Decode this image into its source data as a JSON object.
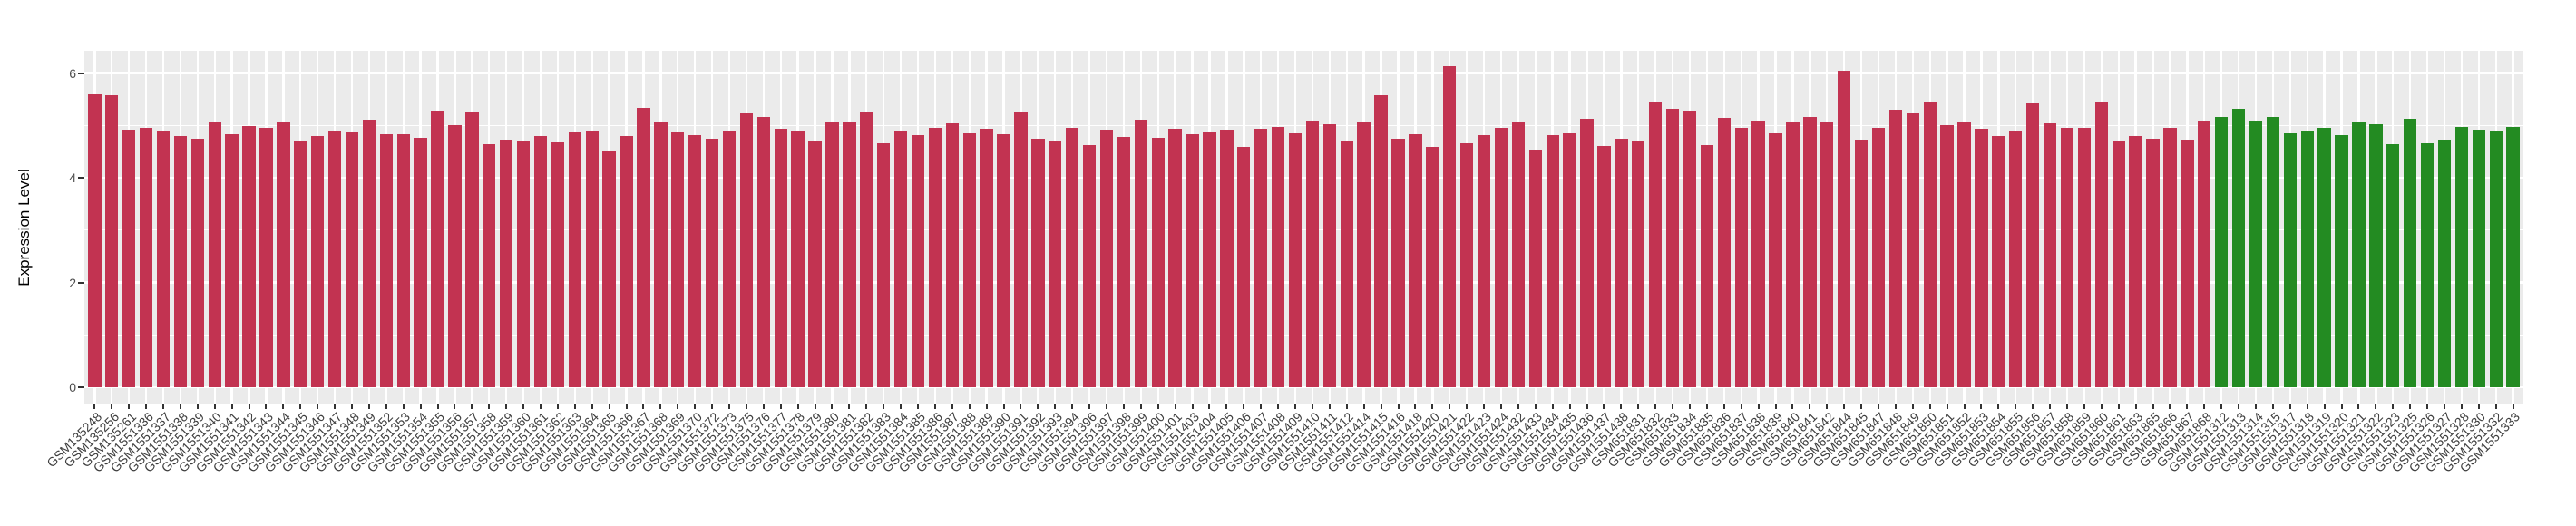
{
  "figure": {
    "background": "#FFFFFF",
    "panel_background": "#EBEBEB",
    "gridline_color": "#FFFFFF"
  },
  "chart_data": {
    "type": "bar",
    "title": "",
    "xlabel": "",
    "ylabel": "Expression Level",
    "yticks": [
      0,
      2,
      4,
      6
    ],
    "ylim": [
      -0.31,
      6.41
    ],
    "grid": "white major (0,2,4,6) + minor (1,3,5) horizontal lines and vertical line at each category, on gray panel",
    "legend_position": "none",
    "x_tick_label_rotation_deg": 45,
    "color_groups": [
      {
        "name": "red-group",
        "color": "#C23351",
        "start": 0,
        "end": 123
      },
      {
        "name": "green-group",
        "color": "#238B22",
        "start": 124,
        "end": 141
      }
    ],
    "categories": [
      "GSM135248",
      "GSM135256",
      "GSM135261",
      "GSM1551336",
      "GSM1551337",
      "GSM1551338",
      "GSM1551339",
      "GSM1551340",
      "GSM1551341",
      "GSM1551342",
      "GSM1551343",
      "GSM1551344",
      "GSM1551345",
      "GSM1551346",
      "GSM1551347",
      "GSM1551348",
      "GSM1551349",
      "GSM1551352",
      "GSM1551353",
      "GSM1551354",
      "GSM1551355",
      "GSM1551356",
      "GSM1551357",
      "GSM1551358",
      "GSM1551359",
      "GSM1551360",
      "GSM1551361",
      "GSM1551362",
      "GSM1551363",
      "GSM1551364",
      "GSM1551365",
      "GSM1551366",
      "GSM1551367",
      "GSM1551368",
      "GSM1551369",
      "GSM1551370",
      "GSM1551372",
      "GSM1551373",
      "GSM1551375",
      "GSM1551376",
      "GSM1551377",
      "GSM1551378",
      "GSM1551379",
      "GSM1551380",
      "GSM1551381",
      "GSM1551382",
      "GSM1551383",
      "GSM1551384",
      "GSM1551385",
      "GSM1551386",
      "GSM1551387",
      "GSM1551388",
      "GSM1551389",
      "GSM1551390",
      "GSM1551391",
      "GSM1551392",
      "GSM1551393",
      "GSM1551394",
      "GSM1551396",
      "GSM1551397",
      "GSM1551398",
      "GSM1551399",
      "GSM1551400",
      "GSM1551401",
      "GSM1551403",
      "GSM1551404",
      "GSM1551405",
      "GSM1551406",
      "GSM1551407",
      "GSM1551408",
      "GSM1551409",
      "GSM1551410",
      "GSM1551411",
      "GSM1551412",
      "GSM1551414",
      "GSM1551415",
      "GSM1551416",
      "GSM1551418",
      "GSM1551420",
      "GSM1551421",
      "GSM1551422",
      "GSM1551423",
      "GSM1551424",
      "GSM1551432",
      "GSM1551433",
      "GSM1551434",
      "GSM1551435",
      "GSM1551436",
      "GSM1551437",
      "GSM1551438",
      "GSM651831",
      "GSM651832",
      "GSM651833",
      "GSM651834",
      "GSM651835",
      "GSM651836",
      "GSM651837",
      "GSM651838",
      "GSM651839",
      "GSM651840",
      "GSM651841",
      "GSM651842",
      "GSM651844",
      "GSM651845",
      "GSM651847",
      "GSM651848",
      "GSM651849",
      "GSM651850",
      "GSM651851",
      "GSM651852",
      "GSM651853",
      "GSM651854",
      "GSM651855",
      "GSM651856",
      "GSM651857",
      "GSM651858",
      "GSM651859",
      "GSM651860",
      "GSM651861",
      "GSM651863",
      "GSM651865",
      "GSM651866",
      "GSM651867",
      "GSM651868",
      "GSM1551312",
      "GSM1551313",
      "GSM1551314",
      "GSM1551315",
      "GSM1551317",
      "GSM1551318",
      "GSM1551319",
      "GSM1551320",
      "GSM1551321",
      "GSM1551322",
      "GSM1551323",
      "GSM1551325",
      "GSM1551326",
      "GSM1551327",
      "GSM1551328",
      "GSM1551330",
      "GSM1551332",
      "GSM1551333"
    ],
    "values": [
      5.59,
      5.58,
      4.92,
      4.95,
      4.9,
      4.79,
      4.74,
      5.06,
      4.83,
      4.99,
      4.95,
      5.08,
      4.71,
      4.79,
      4.9,
      4.87,
      5.11,
      4.84,
      4.83,
      4.76,
      5.29,
      5.0,
      5.26,
      4.64,
      4.73,
      4.71,
      4.79,
      4.67,
      4.89,
      4.9,
      4.51,
      4.79,
      5.33,
      5.07,
      4.88,
      4.82,
      4.75,
      4.91,
      5.23,
      5.17,
      4.94,
      4.91,
      4.72,
      5.08,
      5.08,
      5.25,
      4.66,
      4.91,
      4.82,
      4.96,
      5.04,
      4.85,
      4.94,
      4.83,
      5.26,
      4.74,
      4.7,
      4.95,
      4.63,
      4.92,
      4.78,
      5.11,
      4.76,
      4.94,
      4.83,
      4.89,
      4.92,
      4.59,
      4.94,
      4.97,
      4.85,
      5.09,
      5.02,
      4.7,
      5.07,
      5.58,
      4.75,
      4.83,
      4.59,
      6.14,
      4.66,
      4.82,
      4.95,
      5.06,
      4.54,
      4.81,
      4.85,
      5.12,
      4.6,
      4.75,
      4.7,
      5.45,
      5.32,
      5.28,
      4.62,
      5.15,
      4.95,
      5.1,
      4.85,
      5.05,
      5.16,
      5.08,
      6.05,
      4.73,
      4.95,
      5.3,
      5.23,
      5.44,
      5.0,
      5.06,
      4.93,
      4.8,
      4.9,
      5.43,
      5.04,
      4.95,
      4.95,
      5.45,
      4.72,
      4.79,
      4.75,
      4.95,
      4.73,
      5.1,
      5.17,
      5.32,
      5.09,
      5.17,
      4.85,
      4.91,
      4.95,
      4.81,
      5.06,
      5.02,
      4.65,
      5.12,
      4.66,
      4.73,
      4.97,
      4.92,
      4.91,
      4.97
    ]
  }
}
